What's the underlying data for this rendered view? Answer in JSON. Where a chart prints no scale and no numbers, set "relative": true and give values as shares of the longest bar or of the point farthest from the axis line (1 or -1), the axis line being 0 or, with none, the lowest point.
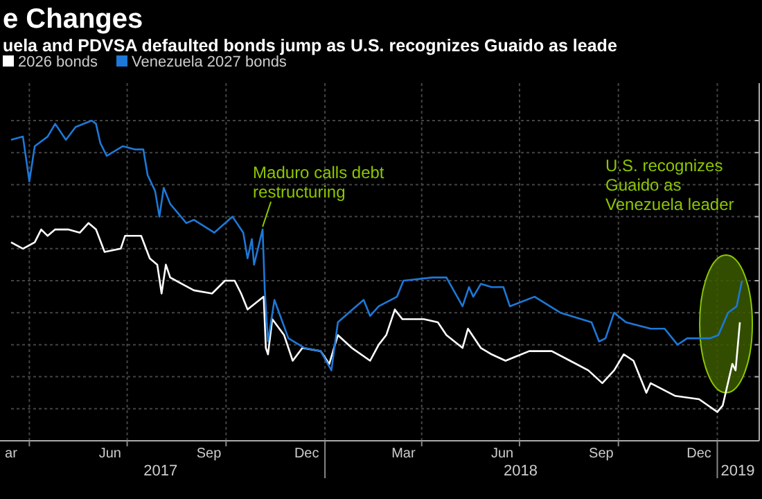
{
  "chart_data": {
    "type": "line",
    "title": "e Changes",
    "subtitle": "uela and PDVSA defaulted bonds jump as U.S. recognizes Guaido as leade",
    "relative": true,
    "grid": true,
    "legend": "top left",
    "marker": "none",
    "line_style": "solid",
    "xlim": [
      "2017-03-15",
      "2019-02-09"
    ],
    "xticks": [
      {
        "value": "2017-03-15",
        "label": "ar"
      },
      {
        "value": "2017-06-15",
        "label": "Jun"
      },
      {
        "value": "2017-09-15",
        "label": "Sep"
      },
      {
        "value": "2017-12-15",
        "label": "Dec"
      },
      {
        "value": "2018-03-15",
        "label": "Mar"
      },
      {
        "value": "2018-06-15",
        "label": "Jun"
      },
      {
        "value": "2018-09-15",
        "label": "Sep"
      },
      {
        "value": "2018-12-15",
        "label": "Dec"
      },
      {
        "value": "2017-04-01",
        "label": null
      },
      {
        "value": "2017-07-01",
        "label": null
      },
      {
        "value": "2017-10-01",
        "label": null
      },
      {
        "value": "2018-01-01",
        "label": null
      },
      {
        "value": "2018-04-01",
        "label": null
      },
      {
        "value": "2018-07-01",
        "label": null
      },
      {
        "value": "2018-10-01",
        "label": null
      },
      {
        "value": "2019-01-01",
        "label": null
      }
    ],
    "x2lim": [
      "2017-03-15",
      "2019-02-09"
    ],
    "x2ticks": [
      {
        "value": "2017-08-01",
        "label": "2017"
      },
      {
        "value": "2018-07-02",
        "label": "2018"
      },
      {
        "value": "2019-01-20",
        "label": "2019"
      }
    ],
    "annotations": [
      {
        "text": "Maduro calls debt restructuring",
        "x": "2017-11-04",
        "y": 0.66
      },
      "U.S. recognizes Guaido as Venezuela leader"
    ],
    "series": [
      {
        "name": "2026 bonds",
        "color": "#ffffff",
        "x": [
          "2017-03-15",
          "2017-03-26",
          "2017-04-06",
          "2017-04-12",
          "2017-04-18",
          "2017-04-25",
          "2017-05-07",
          "2017-05-18",
          "2017-05-26",
          "2017-06-02",
          "2017-06-10",
          "2017-06-25",
          "2017-06-29",
          "2017-07-14",
          "2017-07-22",
          "2017-07-29",
          "2017-08-02",
          "2017-08-06",
          "2017-08-10",
          "2017-09-01",
          "2017-09-18",
          "2017-09-30",
          "2017-10-09",
          "2017-10-15",
          "2017-10-21",
          "2017-11-05",
          "2017-11-07",
          "2017-11-09",
          "2017-11-13",
          "2017-11-24",
          "2017-12-02",
          "2017-12-11",
          "2017-12-28",
          "2018-01-05",
          "2018-01-13",
          "2018-01-26",
          "2018-02-12",
          "2018-02-20",
          "2018-02-27",
          "2018-03-07",
          "2018-03-14",
          "2018-04-03",
          "2018-04-16",
          "2018-04-24",
          "2018-05-09",
          "2018-05-14",
          "2018-05-26",
          "2018-06-05",
          "2018-06-18",
          "2018-07-10",
          "2018-07-31",
          "2018-08-17",
          "2018-09-03",
          "2018-09-16",
          "2018-09-27",
          "2018-10-06",
          "2018-10-15",
          "2018-10-27",
          "2018-10-31",
          "2018-11-23",
          "2018-12-15",
          "2019-01-01",
          "2019-01-06",
          "2019-01-15",
          "2019-01-18",
          "2019-01-22"
        ],
        "values": [
          0.62,
          0.6,
          0.62,
          0.66,
          0.64,
          0.66,
          0.66,
          0.65,
          0.68,
          0.66,
          0.59,
          0.6,
          0.64,
          0.64,
          0.57,
          0.55,
          0.46,
          0.55,
          0.51,
          0.47,
          0.46,
          0.5,
          0.5,
          0.46,
          0.41,
          0.45,
          0.29,
          0.27,
          0.38,
          0.33,
          0.25,
          0.29,
          0.28,
          0.24,
          0.33,
          0.29,
          0.25,
          0.3,
          0.33,
          0.41,
          0.38,
          0.38,
          0.37,
          0.33,
          0.29,
          0.35,
          0.29,
          0.27,
          0.25,
          0.28,
          0.28,
          0.25,
          0.22,
          0.18,
          0.22,
          0.27,
          0.25,
          0.15,
          0.18,
          0.14,
          0.13,
          0.09,
          0.11,
          0.24,
          0.22,
          0.37
        ]
      },
      {
        "name": "Venezuela 2027 bonds",
        "color": "#1e78d7",
        "x": [
          "2017-03-15",
          "2017-03-26",
          "2017-04-01",
          "2017-04-06",
          "2017-04-18",
          "2017-04-25",
          "2017-05-05",
          "2017-05-14",
          "2017-05-29",
          "2017-06-02",
          "2017-06-06",
          "2017-06-12",
          "2017-06-27",
          "2017-07-08",
          "2017-07-16",
          "2017-07-20",
          "2017-07-27",
          "2017-07-31",
          "2017-08-04",
          "2017-08-10",
          "2017-08-25",
          "2017-09-01",
          "2017-09-20",
          "2017-10-07",
          "2017-10-17",
          "2017-10-21",
          "2017-10-25",
          "2017-10-27",
          "2017-11-04",
          "2017-11-06",
          "2017-11-09",
          "2017-11-15",
          "2017-11-28",
          "2017-12-13",
          "2017-12-28",
          "2018-01-07",
          "2018-01-13",
          "2018-01-30",
          "2018-02-06",
          "2018-02-12",
          "2018-02-20",
          "2018-03-09",
          "2018-03-15",
          "2018-04-11",
          "2018-04-24",
          "2018-05-09",
          "2018-05-15",
          "2018-05-19",
          "2018-05-26",
          "2018-06-05",
          "2018-06-16",
          "2018-06-22",
          "2018-07-15",
          "2018-08-08",
          "2018-09-06",
          "2018-09-13",
          "2018-09-19",
          "2018-09-27",
          "2018-10-08",
          "2018-10-31",
          "2018-11-13",
          "2018-11-25",
          "2018-12-04",
          "2018-12-17",
          "2018-12-25",
          "2019-01-02",
          "2019-01-11",
          "2019-01-19",
          "2019-01-24"
        ],
        "values": [
          0.94,
          0.95,
          0.81,
          0.92,
          0.95,
          0.99,
          0.94,
          0.98,
          1.0,
          0.99,
          0.93,
          0.89,
          0.92,
          0.91,
          0.91,
          0.83,
          0.78,
          0.7,
          0.79,
          0.74,
          0.68,
          0.69,
          0.65,
          0.7,
          0.65,
          0.57,
          0.63,
          0.55,
          0.66,
          0.47,
          0.31,
          0.44,
          0.32,
          0.29,
          0.28,
          0.22,
          0.37,
          0.42,
          0.44,
          0.39,
          0.42,
          0.45,
          0.5,
          0.51,
          0.51,
          0.42,
          0.48,
          0.45,
          0.49,
          0.48,
          0.48,
          0.42,
          0.45,
          0.4,
          0.37,
          0.31,
          0.32,
          0.4,
          0.37,
          0.35,
          0.35,
          0.3,
          0.32,
          0.32,
          0.32,
          0.33,
          0.4,
          0.42,
          0.5
        ]
      }
    ]
  }
}
